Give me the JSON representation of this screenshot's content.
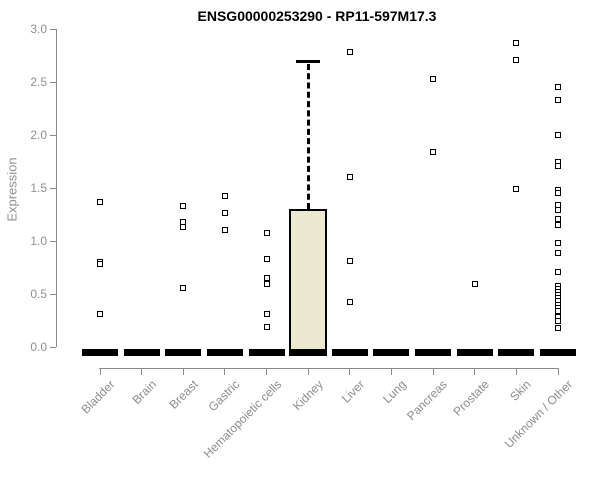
{
  "chart_data": {
    "type": "boxplot",
    "title": "ENSG00000253290 - RP11-597M17.3",
    "ylabel": "Expression",
    "xlabel": "",
    "ylim": [
      0.0,
      3.0
    ],
    "grid": false,
    "legend": false,
    "yticks": [
      0.0,
      0.5,
      1.0,
      1.5,
      2.0,
      2.5,
      3.0
    ],
    "ytick_labels": [
      "0.0",
      "0.5",
      "1.0",
      "1.5",
      "2.0",
      "2.5",
      "3.0"
    ],
    "categories": [
      "Bladder",
      "Brain",
      "Breast",
      "Gastric",
      "Hematopoietic cells",
      "Kidney",
      "Liver",
      "Lung",
      "Pancreas",
      "Prostate",
      "Skin",
      "Unknown / Other"
    ],
    "boxes": [
      {
        "q1": 0,
        "median": 0,
        "q3": 0,
        "whisker_low": 0,
        "whisker_high": 0
      },
      {
        "q1": 0,
        "median": 0,
        "q3": 0,
        "whisker_low": 0,
        "whisker_high": 0
      },
      {
        "q1": 0,
        "median": 0,
        "q3": 0,
        "whisker_low": 0,
        "whisker_high": 0
      },
      {
        "q1": 0,
        "median": 0,
        "q3": 0,
        "whisker_low": 0,
        "whisker_high": 0
      },
      {
        "q1": 0,
        "median": 0,
        "q3": 0,
        "whisker_low": 0,
        "whisker_high": 0
      },
      {
        "q1": 0,
        "median": 0,
        "q3": 1.3,
        "whisker_low": 0,
        "whisker_high": 2.7
      },
      {
        "q1": 0,
        "median": 0,
        "q3": 0,
        "whisker_low": 0,
        "whisker_high": 0
      },
      {
        "q1": 0,
        "median": 0,
        "q3": 0,
        "whisker_low": 0,
        "whisker_high": 0
      },
      {
        "q1": 0,
        "median": 0,
        "q3": 0,
        "whisker_low": 0,
        "whisker_high": 0
      },
      {
        "q1": 0,
        "median": 0,
        "q3": 0,
        "whisker_low": 0,
        "whisker_high": 0
      },
      {
        "q1": 0,
        "median": 0,
        "q3": 0,
        "whisker_low": 0,
        "whisker_high": 0
      },
      {
        "q1": 0,
        "median": 0,
        "q3": 0,
        "whisker_low": 0,
        "whisker_high": 0
      }
    ],
    "outliers": [
      [
        1.37,
        0.8,
        0.78,
        0.31
      ],
      [],
      [
        1.33,
        1.18,
        1.13,
        0.56
      ],
      [
        1.42,
        1.26,
        1.1
      ],
      [
        1.08,
        0.83,
        0.65,
        0.59,
        0.31,
        0.19
      ],
      [],
      [
        2.78,
        1.6,
        0.81,
        0.42
      ],
      [],
      [
        2.53,
        1.84
      ],
      [
        0.59
      ],
      [
        2.87,
        2.71,
        1.49
      ],
      [
        2.45,
        2.33,
        2.0,
        1.75,
        1.71,
        1.48,
        1.45,
        1.34,
        1.29,
        1.21,
        1.15,
        0.98,
        0.89,
        0.71,
        0.58,
        0.55,
        0.52,
        0.49,
        0.46,
        0.43,
        0.4,
        0.37,
        0.34,
        0.28,
        0.25,
        0.18
      ]
    ],
    "colors": {
      "box_fill": "#EDE8D0",
      "box_border": "#000000",
      "median": "#000000",
      "axis": "#8A8A8A",
      "tick_label": "#8C8C8C",
      "title": "#000000",
      "point_fill": "#FFFFFF",
      "point_border": "#000000",
      "background": "#FFFFFF"
    }
  }
}
